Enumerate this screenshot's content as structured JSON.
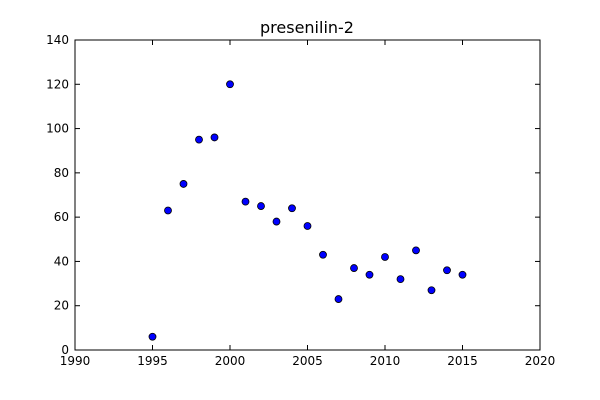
{
  "chart_data": {
    "type": "scatter",
    "title": "presenilin-2",
    "xlabel": "",
    "ylabel": "",
    "xlim": [
      1990,
      2020
    ],
    "ylim": [
      0,
      140
    ],
    "xticks": [
      1990,
      1995,
      2000,
      2005,
      2010,
      2015,
      2020
    ],
    "yticks": [
      0,
      20,
      40,
      60,
      80,
      100,
      120,
      140
    ],
    "grid": false,
    "legend": "none",
    "colors": {
      "marker_fill": "#0000ff",
      "marker_edge": "#000000",
      "axes": "#000000",
      "background": "#ffffff"
    },
    "series": [
      {
        "x": [
          1995,
          1996,
          1997,
          1998,
          1999,
          2000,
          2001,
          2002,
          2003,
          2004,
          2005,
          2006,
          2007,
          2008,
          2009,
          2010,
          2011,
          2012,
          2013,
          2014,
          2015
        ],
        "y": [
          6,
          63,
          75,
          95,
          96,
          120,
          67,
          65,
          58,
          64,
          56,
          43,
          23,
          37,
          34,
          42,
          32,
          45,
          27,
          36,
          34
        ]
      }
    ]
  }
}
